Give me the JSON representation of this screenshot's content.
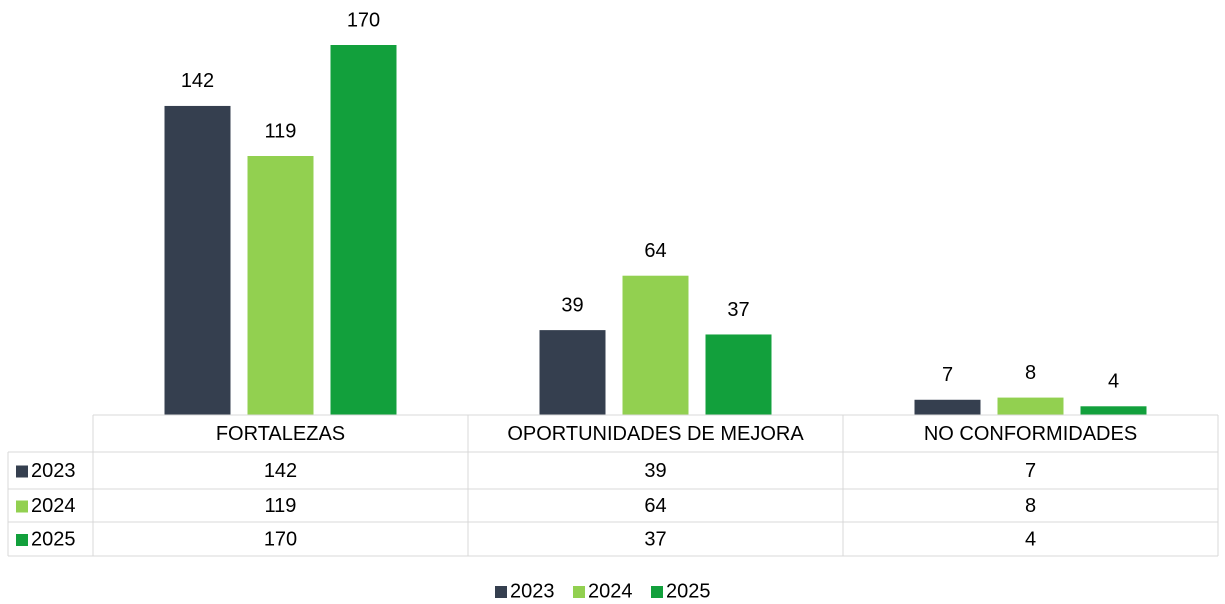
{
  "chart_data": {
    "type": "bar",
    "categories": [
      "FORTALEZAS",
      "OPORTUNIDADES DE MEJORA",
      "NO CONFORMIDADES"
    ],
    "series": [
      {
        "name": "2023",
        "color": "#353f4f",
        "values": [
          142,
          39,
          7
        ]
      },
      {
        "name": "2024",
        "color": "#92d050",
        "values": [
          119,
          64,
          8
        ]
      },
      {
        "name": "2025",
        "color": "#12a03c",
        "values": [
          170,
          37,
          4
        ]
      }
    ],
    "data_table": true,
    "legend": "bottom"
  }
}
